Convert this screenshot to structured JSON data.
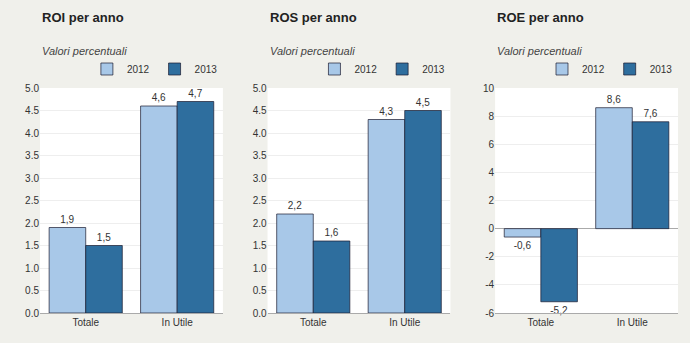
{
  "chart_data": [
    {
      "type": "bar",
      "title": "ROI per anno",
      "subtitle": "Valori percentuali",
      "categories": [
        "Totale",
        "In Utile"
      ],
      "series": [
        {
          "name": "2012",
          "color": "#a8c8e8",
          "values": [
            1.9,
            4.6
          ],
          "value_labels": [
            "1,9",
            "4,6"
          ]
        },
        {
          "name": "2013",
          "color": "#2e6e9e",
          "values": [
            1.5,
            4.7
          ],
          "value_labels": [
            "1,5",
            "4,7"
          ]
        }
      ],
      "ylim": [
        0,
        5
      ],
      "yticks": [
        {
          "value": 0,
          "label": "0.0"
        },
        0.5,
        {
          "value": 1,
          "label": "1.0"
        },
        1.5,
        {
          "value": 2,
          "label": "2.0"
        },
        2.5,
        {
          "value": 3,
          "label": "3.0"
        },
        3.5,
        {
          "value": 4,
          "label": "4.0"
        },
        4.5,
        {
          "value": 5,
          "label": "5.0"
        }
      ],
      "grid": true,
      "data_labels": true,
      "legend": "upper right"
    },
    {
      "type": "bar",
      "title": "ROS per anno",
      "subtitle": "Valori percentuali",
      "categories": [
        "Totale",
        "In Utile"
      ],
      "series": [
        {
          "name": "2012",
          "color": "#a8c8e8",
          "values": [
            2.2,
            4.3
          ],
          "value_labels": [
            "2,2",
            "4,3"
          ]
        },
        {
          "name": "2013",
          "color": "#2e6e9e",
          "values": [
            1.6,
            4.5
          ],
          "value_labels": [
            "1,6",
            "4,5"
          ]
        }
      ],
      "ylim": [
        0,
        5
      ],
      "yticks": [
        {
          "value": 0,
          "label": "0.0"
        },
        0.5,
        {
          "value": 1,
          "label": "1.0"
        },
        1.5,
        {
          "value": 2,
          "label": "2.0"
        },
        2.5,
        {
          "value": 3,
          "label": "3.0"
        },
        3.5,
        {
          "value": 4,
          "label": "4.0"
        },
        4.5,
        {
          "value": 5,
          "label": "5.0"
        }
      ],
      "grid": true,
      "data_labels": true,
      "legend": "upper right"
    },
    {
      "type": "bar",
      "title": "ROE per anno",
      "subtitle": "Valori percentuali",
      "categories": [
        "Totale",
        "In Utile"
      ],
      "series": [
        {
          "name": "2012",
          "color": "#a8c8e8",
          "values": [
            -0.6,
            8.6
          ],
          "value_labels": [
            "-0,6",
            "8,6"
          ]
        },
        {
          "name": "2013",
          "color": "#2e6e9e",
          "values": [
            -5.2,
            7.6
          ],
          "value_labels": [
            "-5,2",
            "7,6"
          ]
        }
      ],
      "ylim": [
        -6,
        10
      ],
      "yticks": [
        -6,
        -4,
        -2,
        0,
        2,
        4,
        6,
        8,
        10
      ],
      "grid": true,
      "data_labels": true,
      "legend": "upper right"
    }
  ]
}
